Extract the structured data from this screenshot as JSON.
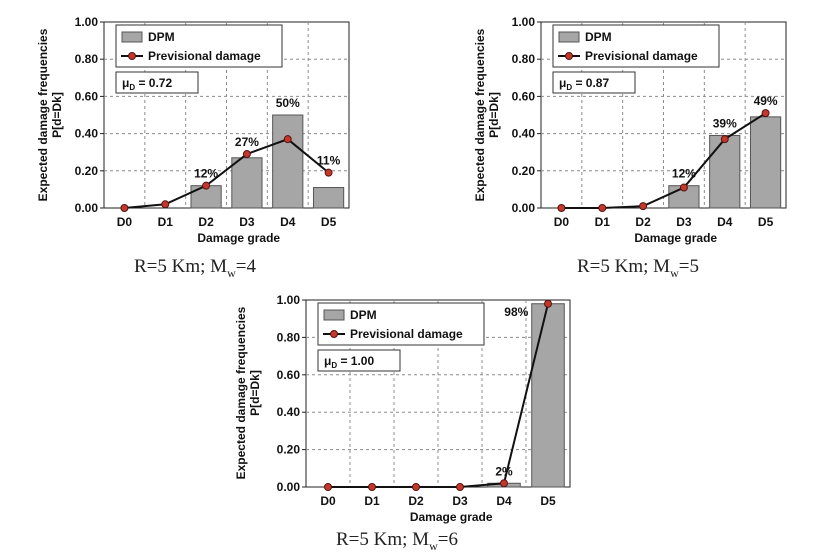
{
  "chart_data": [
    {
      "type": "bar",
      "title": "",
      "caption": {
        "prefix": "R=5 Km; M",
        "sub": "w",
        "suffix": "=4"
      },
      "xlabel": "Damage grade",
      "ylabel_lines": [
        "Expected damage frequencies",
        "P[d=Dk]"
      ],
      "ylim": [
        0,
        1
      ],
      "yticks": [
        "0.00",
        "0.20",
        "0.40",
        "0.60",
        "0.80",
        "1.00"
      ],
      "categories": [
        "D0",
        "D1",
        "D2",
        "D3",
        "D4",
        "D5"
      ],
      "grid": true,
      "legend": {
        "placement": "top-left",
        "entries": [
          "DPM",
          "Previsional damage"
        ]
      },
      "mu": {
        "prefix": "μ",
        "sub": "D",
        "suffix": " = 0.72"
      },
      "series": [
        {
          "name": "DPM",
          "kind": "bar",
          "values": [
            0.0,
            0.0,
            0.12,
            0.27,
            0.5,
            0.11
          ]
        },
        {
          "name": "Previsional damage",
          "kind": "line",
          "values": [
            0.0,
            0.02,
            0.12,
            0.29,
            0.37,
            0.19
          ]
        }
      ],
      "data_labels": [
        null,
        null,
        "12%",
        "27%",
        "50%",
        "11%"
      ]
    },
    {
      "type": "bar",
      "title": "",
      "caption": {
        "prefix": "R=5 Km; M",
        "sub": "w",
        "suffix": "=5"
      },
      "xlabel": "Damage grade",
      "ylabel_lines": [
        "Expected damage frequencies",
        "P[d=Dk]"
      ],
      "ylim": [
        0,
        1
      ],
      "yticks": [
        "0.00",
        "0.20",
        "0.40",
        "0.60",
        "0.80",
        "1.00"
      ],
      "categories": [
        "D0",
        "D1",
        "D2",
        "D3",
        "D4",
        "D5"
      ],
      "grid": true,
      "legend": {
        "placement": "top-left",
        "entries": [
          "DPM",
          "Previsional damage"
        ]
      },
      "mu": {
        "prefix": "μ",
        "sub": "D",
        "suffix": " = 0.87"
      },
      "series": [
        {
          "name": "DPM",
          "kind": "bar",
          "values": [
            0.0,
            0.0,
            0.0,
            0.12,
            0.39,
            0.49
          ]
        },
        {
          "name": "Previsional damage",
          "kind": "line",
          "values": [
            0.0,
            0.0,
            0.01,
            0.11,
            0.37,
            0.51
          ]
        }
      ],
      "data_labels": [
        null,
        null,
        null,
        "12%",
        "39%",
        "49%"
      ]
    },
    {
      "type": "bar",
      "title": "",
      "caption": {
        "prefix": "R=5 Km; M",
        "sub": "w",
        "suffix": "=6"
      },
      "xlabel": "Damage grade",
      "ylabel_lines": [
        "Expected damage frequencies",
        "P[d=Dk]"
      ],
      "ylim": [
        0,
        1
      ],
      "yticks": [
        "0.00",
        "0.20",
        "0.40",
        "0.60",
        "0.80",
        "1.00"
      ],
      "categories": [
        "D0",
        "D1",
        "D2",
        "D3",
        "D4",
        "D5"
      ],
      "grid": true,
      "legend": {
        "placement": "top-left",
        "entries": [
          "DPM",
          "Previsional damage"
        ]
      },
      "mu": {
        "prefix": "μ",
        "sub": "D",
        "suffix": " = 1.00"
      },
      "series": [
        {
          "name": "DPM",
          "kind": "bar",
          "values": [
            0.0,
            0.0,
            0.0,
            0.0,
            0.02,
            0.98
          ]
        },
        {
          "name": "Previsional damage",
          "kind": "line",
          "values": [
            0.0,
            0.0,
            0.0,
            0.0,
            0.02,
            0.98
          ]
        }
      ],
      "data_labels": [
        null,
        null,
        null,
        null,
        "2%",
        "98%"
      ]
    }
  ],
  "colors": {
    "bar_fill": "#a6a6a6",
    "bar_stroke": "#555555",
    "line": "#111111",
    "marker_fill": "#c0392b",
    "marker_stroke": "#5a1010",
    "grid": "#8c8c8c",
    "text": "#111111"
  }
}
